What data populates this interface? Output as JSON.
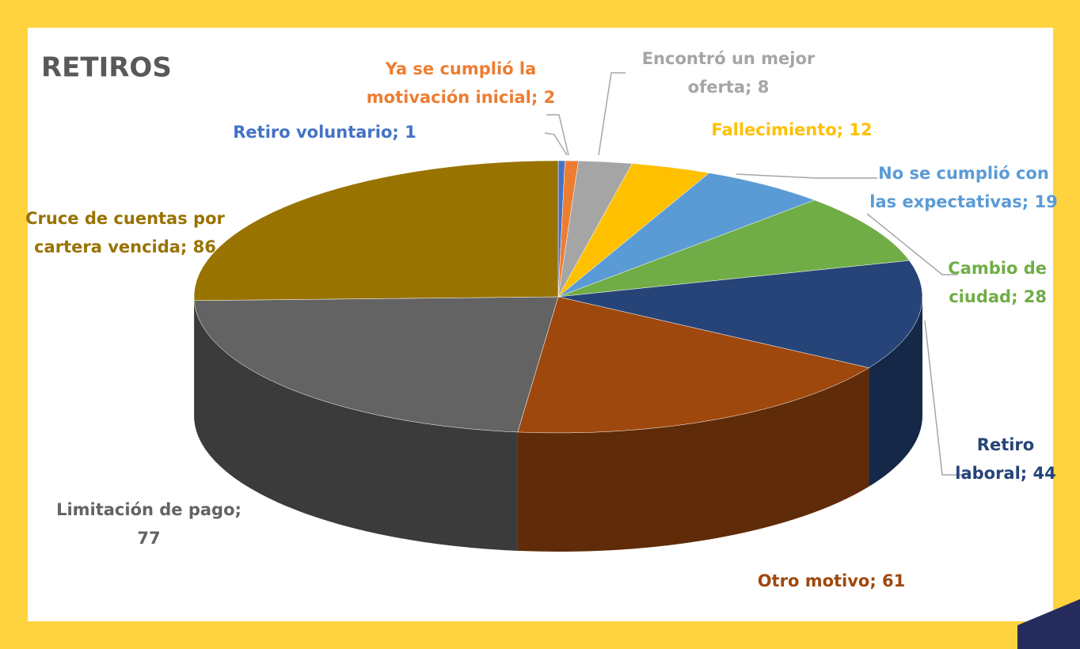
{
  "chart_data": {
    "type": "pie3d",
    "title": "RETIROS",
    "values": [
      1,
      2,
      8,
      12,
      19,
      28,
      44,
      61,
      77,
      86
    ],
    "value_labels": [
      [
        "Retiro voluntario; 1"
      ],
      [
        "Ya se cumplió la",
        "motivación inicial; 2"
      ],
      [
        "Encontró un mejor",
        "oferta; 8"
      ],
      [
        "Fallecimiento; 12"
      ],
      [
        "No se cumplió con",
        "las expectativas; 19"
      ],
      [
        "Cambio de",
        "ciudad; 28"
      ],
      [
        "Retiro",
        "laboral; 44"
      ],
      [
        "Otro motivo; 61"
      ],
      [
        "Limitación de pago;",
        "77"
      ],
      [
        "Cruce de cuentas por",
        "cartera vencida; 86"
      ]
    ],
    "colors": [
      "#4472c4",
      "#ed7d31",
      "#a5a5a5",
      "#ffc000",
      "#5b9bd5",
      "#70ad47",
      "#264478",
      "#9e480e",
      "#636363",
      "#997300"
    ]
  }
}
